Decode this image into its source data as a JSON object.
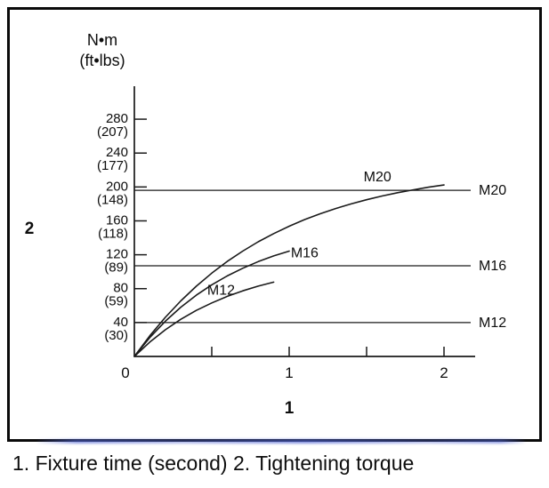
{
  "figure": {
    "caption": "1. Fixture time (second) 2. Tightening torque"
  },
  "chart_data": {
    "type": "line",
    "title": "",
    "xlabel": "1",
    "ylabel": "2",
    "x_axis_legend_meaning": "Fixture time (second)",
    "y_axis_legend_meaning": "Tightening torque",
    "y_axis_unit_label": [
      "N•m",
      "(ft•lbs)"
    ],
    "xlim": [
      0,
      2.2
    ],
    "ylim": [
      0,
      300
    ],
    "grid": false,
    "axis_color": "#1a1a1a",
    "x_ticks": [
      0.5,
      1,
      1.5,
      2
    ],
    "x_tick_labels": [
      {
        "value": 0,
        "label": "0"
      },
      {
        "value": 1,
        "label": "1"
      },
      {
        "value": 2,
        "label": "2"
      }
    ],
    "y_ticks": [
      {
        "value": 280,
        "nm": "280",
        "ftlbs": "(207)"
      },
      {
        "value": 240,
        "nm": "240",
        "ftlbs": "(177)"
      },
      {
        "value": 200,
        "nm": "200",
        "ftlbs": "(148)"
      },
      {
        "value": 160,
        "nm": "160",
        "ftlbs": "(118)"
      },
      {
        "value": 120,
        "nm": "120",
        "ftlbs": "(89)"
      },
      {
        "value": 80,
        "nm": "80",
        "ftlbs": "(59)"
      },
      {
        "value": 40,
        "nm": "40",
        "ftlbs": "(30)"
      }
    ],
    "ref_lines": [
      {
        "label": "M20",
        "value": 196
      },
      {
        "label": "M16",
        "value": 107
      },
      {
        "label": "M12",
        "value": 40
      }
    ],
    "series": [
      {
        "name": "M20",
        "label_pos": [
          1.57,
          212
        ],
        "points": [
          [
            0,
            0
          ],
          [
            0.1,
            24.4
          ],
          [
            0.2,
            46.2
          ],
          [
            0.3,
            65.6
          ],
          [
            0.4,
            82.9
          ],
          [
            0.5,
            98.3
          ],
          [
            0.6,
            112.1
          ],
          [
            0.7,
            124.3
          ],
          [
            0.8,
            135.3
          ],
          [
            0.9,
            145
          ],
          [
            1.0,
            153.7
          ],
          [
            1.1,
            161.5
          ],
          [
            1.2,
            168.4
          ],
          [
            1.3,
            174.5
          ],
          [
            1.4,
            180
          ],
          [
            1.5,
            184.9
          ],
          [
            1.6,
            189.3
          ],
          [
            1.7,
            193.2
          ],
          [
            1.8,
            196.6
          ],
          [
            1.9,
            199.7
          ],
          [
            2.0,
            202.4
          ]
        ]
      },
      {
        "name": "M16",
        "label_pos": [
          1.1,
          122
        ],
        "points": [
          [
            0,
            0
          ],
          [
            0.1,
            22.3
          ],
          [
            0.2,
            41.5
          ],
          [
            0.3,
            58.1
          ],
          [
            0.4,
            72.3
          ],
          [
            0.5,
            84.5
          ],
          [
            0.6,
            95
          ],
          [
            0.7,
            104.1
          ],
          [
            0.8,
            111.9
          ],
          [
            0.9,
            118.6
          ],
          [
            1.0,
            124.3
          ]
        ]
      },
      {
        "name": "M12",
        "label_pos": [
          0.56,
          78
        ],
        "points": [
          [
            0,
            0
          ],
          [
            0.1,
            17
          ],
          [
            0.2,
            31.5
          ],
          [
            0.3,
            43.8
          ],
          [
            0.4,
            54.3
          ],
          [
            0.5,
            63.2
          ],
          [
            0.6,
            70.9
          ],
          [
            0.7,
            77.4
          ],
          [
            0.8,
            83
          ],
          [
            0.9,
            87.7
          ]
        ]
      }
    ]
  }
}
